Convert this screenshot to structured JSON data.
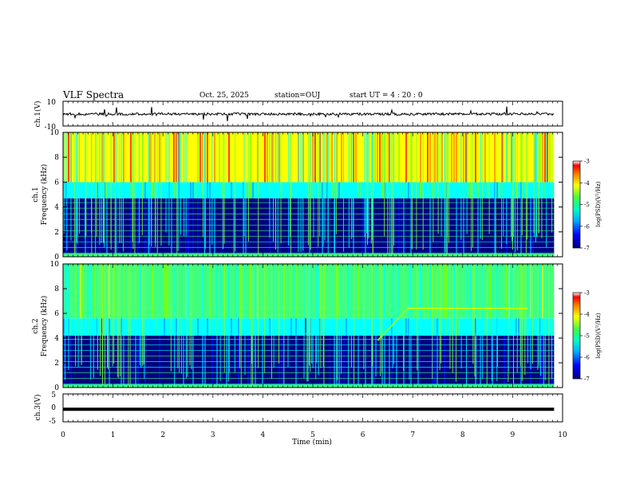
{
  "header": {
    "title": "VLF Spectra",
    "date": "Oct. 25, 2025",
    "station": "station=OUJ",
    "start": "start  UT =   4 : 20 : 0"
  },
  "colors": {
    "colormap": [
      "#000080",
      "#0000ff",
      "#00a0ff",
      "#00ffff",
      "#00ff80",
      "#80ff00",
      "#ffff00",
      "#ff8000",
      "#ff0000",
      "#ffffff"
    ],
    "trace": "#000000"
  },
  "chart_data": [
    {
      "type": "line",
      "name": "ch1-waveform",
      "ylabel": "ch.1(V)",
      "ylim": [
        -10,
        10
      ],
      "yticks": [
        "10",
        "-10"
      ],
      "xlim": [
        0,
        10
      ],
      "baseline": 0,
      "description_series": [
        {
          "name": "ch.1",
          "values": [
            0.2,
            -0.3,
            0.5,
            -0.4,
            0.1,
            -0.6,
            0.3,
            -0.2,
            0.4,
            -0.5,
            0.2
          ]
        }
      ]
    },
    {
      "type": "heatmap",
      "name": "ch1-spectrogram",
      "ylabel": "ch.1\nFrequency (kHz)",
      "ylabel_line1": "ch.1",
      "ylabel_line2": "Frequency (kHz)",
      "ylim": [
        0,
        10
      ],
      "yticks": [
        "0",
        "2",
        "4",
        "6",
        "8",
        "10"
      ],
      "xlim": [
        0,
        9.83
      ],
      "colorbar": {
        "label": "log(PSD)(V²/Hz)",
        "range": [
          -7,
          -3
        ],
        "ticks": [
          "-3",
          "-4",
          "-5",
          "-6",
          "-7"
        ]
      },
      "bands": [
        {
          "from_khz": 0,
          "to_khz": 4.7,
          "level": -6.6
        },
        {
          "from_khz": 4.7,
          "to_khz": 6.0,
          "level": -5.4
        },
        {
          "from_khz": 6.0,
          "to_khz": 10,
          "level": -3.9
        }
      ],
      "sferic_count": 140
    },
    {
      "type": "heatmap",
      "name": "ch2-spectrogram",
      "ylabel": "ch.2\nFrequency (kHz)",
      "ylabel_line1": "ch.2",
      "ylabel_line2": "Frequency (kHz)",
      "ylim": [
        0,
        10
      ],
      "yticks": [
        "0",
        "2",
        "4",
        "6",
        "8",
        "10"
      ],
      "xlim": [
        0,
        9.83
      ],
      "colorbar": {
        "label": "log(PSD)(V²/Hz)",
        "range": [
          -7,
          -3
        ],
        "ticks": [
          "-3",
          "-4",
          "-5",
          "-6",
          "-7"
        ]
      },
      "bands": [
        {
          "from_khz": 0,
          "to_khz": 4.2,
          "level": -6.6
        },
        {
          "from_khz": 4.2,
          "to_khz": 5.6,
          "level": -5.6
        },
        {
          "from_khz": 5.6,
          "to_khz": 10,
          "level": -5.0
        }
      ],
      "emission_line": {
        "from_min": 6.3,
        "to_min": 9.3,
        "khz": 6.4
      },
      "sferic_count": 120
    },
    {
      "type": "line",
      "name": "ch3-trace",
      "ylabel": "ch.3(V)",
      "ylim": [
        -5,
        5
      ],
      "yticks": [
        "5",
        "0",
        "-5"
      ],
      "xlim": [
        0,
        9.83
      ],
      "level": -0.5
    },
    {
      "type": "axis",
      "name": "time-axis",
      "xlabel": "Time (min)",
      "xlim": [
        0,
        10
      ],
      "xticks": [
        "0",
        "1",
        "2",
        "3",
        "4",
        "5",
        "6",
        "7",
        "8",
        "9",
        "10"
      ]
    }
  ]
}
